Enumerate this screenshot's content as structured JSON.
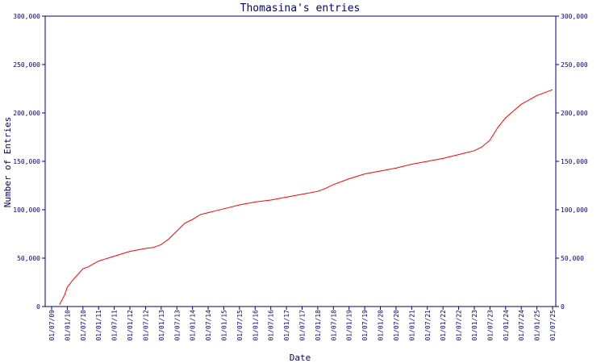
{
  "chart_data": {
    "type": "line",
    "title": "Thomasina's entries",
    "xlabel": "Date",
    "ylabel": "Number of Entries",
    "ylim": [
      0,
      300000
    ],
    "y_ticks": [
      0,
      50000,
      100000,
      150000,
      200000,
      250000,
      300000
    ],
    "y_tick_labels": [
      "0",
      "50,000",
      "100,000",
      "150,000",
      "200,000",
      "250,000",
      "300,000"
    ],
    "x_ticks": [
      "01/07/09",
      "01/01/10",
      "01/07/10",
      "01/01/11",
      "01/07/11",
      "01/01/12",
      "01/07/12",
      "01/01/13",
      "01/07/13",
      "01/01/14",
      "01/07/14",
      "01/01/15",
      "01/07/15",
      "01/01/16",
      "01/07/16",
      "01/01/17",
      "01/07/17",
      "01/01/18",
      "01/07/18",
      "01/01/19",
      "01/07/19",
      "01/01/20",
      "01/07/20",
      "01/01/21",
      "01/07/21",
      "01/01/22",
      "01/07/22",
      "01/01/23",
      "01/07/23",
      "01/01/24",
      "01/07/24",
      "01/01/25",
      "01/07/25"
    ],
    "grid": false,
    "line_color": "#ff0000",
    "axis_color": "#000080",
    "series": [
      {
        "x": [
          "01/10/09",
          "01/12/09",
          "01/01/10",
          "01/03/10",
          "01/05/10",
          "01/07/10",
          "01/09/10",
          "01/01/11",
          "01/07/11",
          "01/01/12",
          "01/07/12",
          "01/10/12",
          "01/01/13",
          "01/04/13",
          "01/07/13",
          "01/10/13",
          "01/01/14",
          "01/04/14",
          "01/07/14",
          "01/10/14",
          "01/01/15",
          "01/07/15",
          "01/01/16",
          "01/07/16",
          "01/01/17",
          "01/07/17",
          "01/01/18",
          "01/04/18",
          "01/07/18",
          "01/01/19",
          "01/07/19",
          "01/01/20",
          "01/07/20",
          "01/01/21",
          "01/07/21",
          "01/01/22",
          "01/07/22",
          "01/01/23",
          "01/04/23",
          "01/07/23",
          "01/10/23",
          "01/01/24",
          "01/04/24",
          "01/07/24",
          "01/01/25",
          "01/04/25",
          "01/07/25"
        ],
        "y": [
          2000,
          12000,
          20000,
          27000,
          33000,
          39000,
          41000,
          47000,
          52000,
          57000,
          60000,
          61000,
          64000,
          70000,
          78000,
          86000,
          90000,
          95000,
          97000,
          99000,
          101000,
          105000,
          108000,
          110000,
          113000,
          116000,
          119000,
          122000,
          126000,
          132000,
          137000,
          140000,
          143000,
          147000,
          150000,
          153000,
          157000,
          161000,
          165000,
          172000,
          185000,
          195000,
          202000,
          209000,
          218000,
          221000,
          224000
        ]
      }
    ]
  }
}
